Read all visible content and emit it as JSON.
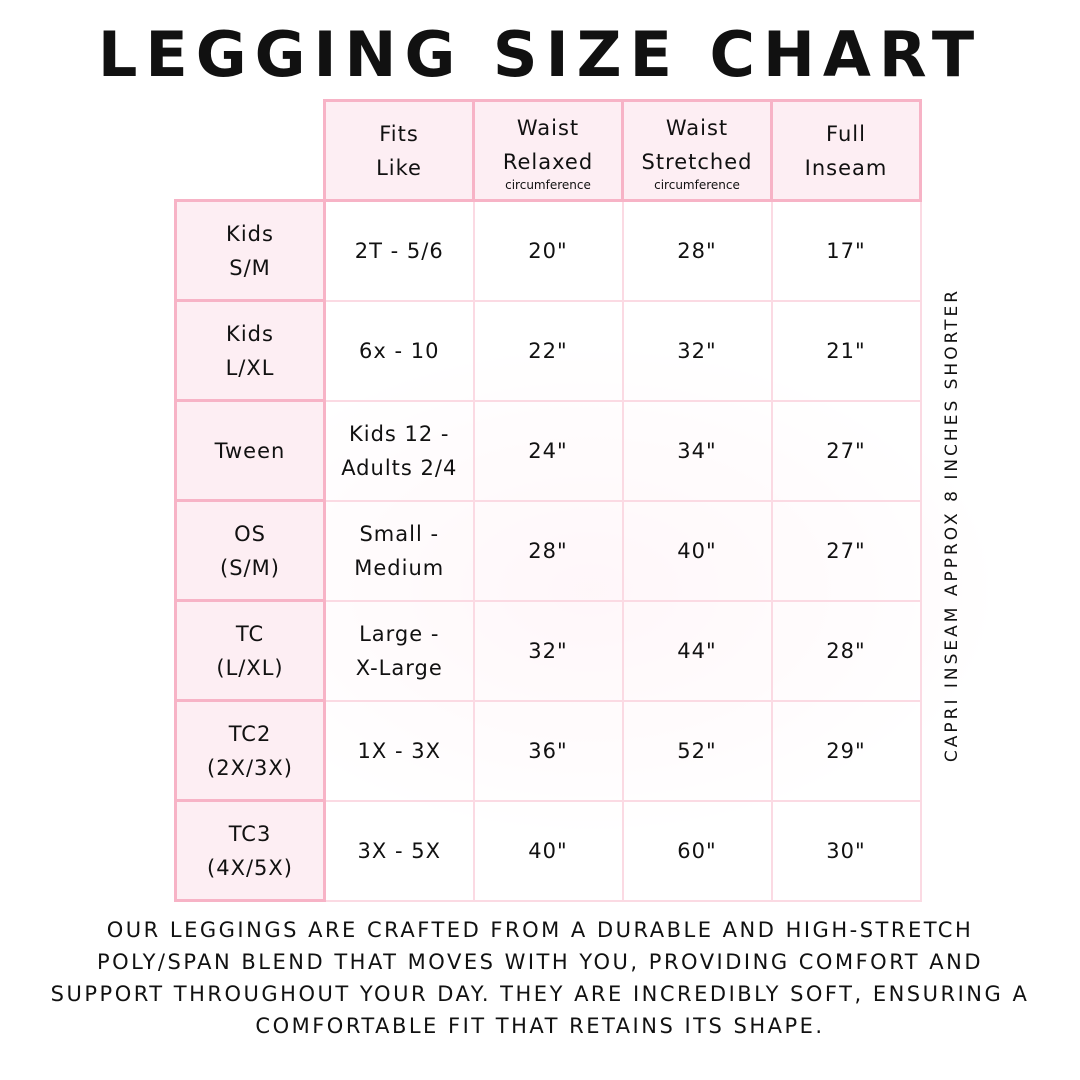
{
  "title": "LEGGING SIZE CHART",
  "headers": [
    {
      "line1": "Fits",
      "line2": "Like",
      "sub": ""
    },
    {
      "line1": "Waist",
      "line2": "Relaxed",
      "sub": "circumference"
    },
    {
      "line1": "Waist",
      "line2": "Stretched",
      "sub": "circumference"
    },
    {
      "line1": "Full",
      "line2": "Inseam",
      "sub": ""
    }
  ],
  "rows": [
    {
      "size1": "Kids",
      "size2": "S/M",
      "fits1": "2T - 5/6",
      "fits2": "",
      "relaxed": "20\"",
      "stretched": "28\"",
      "inseam": "17\""
    },
    {
      "size1": "Kids",
      "size2": "L/XL",
      "fits1": "6x - 10",
      "fits2": "",
      "relaxed": "22\"",
      "stretched": "32\"",
      "inseam": "21\""
    },
    {
      "size1": "Tween",
      "size2": "",
      "fits1": "Kids 12 -",
      "fits2": "Adults 2/4",
      "relaxed": "24\"",
      "stretched": "34\"",
      "inseam": "27\""
    },
    {
      "size1": "OS",
      "size2": "(S/M)",
      "fits1": "Small -",
      "fits2": "Medium",
      "relaxed": "28\"",
      "stretched": "40\"",
      "inseam": "27\""
    },
    {
      "size1": "TC",
      "size2": "(L/XL)",
      "fits1": "Large -",
      "fits2": "X-Large",
      "relaxed": "32\"",
      "stretched": "44\"",
      "inseam": "28\""
    },
    {
      "size1": "TC2",
      "size2": "(2X/3X)",
      "fits1": "1X - 3X",
      "fits2": "",
      "relaxed": "36\"",
      "stretched": "52\"",
      "inseam": "29\""
    },
    {
      "size1": "TC3",
      "size2": "(4X/5X)",
      "fits1": "3X - 5X",
      "fits2": "",
      "relaxed": "40\"",
      "stretched": "60\"",
      "inseam": "30\""
    }
  ],
  "side_note": "CAPRI INSEAM APPROX 8 INCHES SHORTER",
  "description": "Our leggings are crafted from a durable and high-stretch poly/span blend that moves with you, providing comfort and support throughout your day. They are incredibly soft, ensuring a comfortable fit that retains its shape.",
  "colors": {
    "border": "#f7b3c6",
    "header_bg": "#fdeef3",
    "inner_border": "#fbdae3"
  }
}
